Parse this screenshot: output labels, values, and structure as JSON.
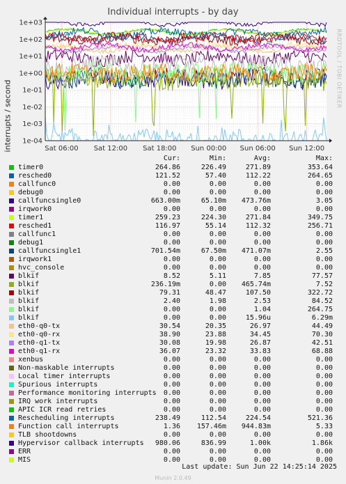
{
  "chart_data": {
    "type": "line",
    "title": "Individual interrupts - by day",
    "ylabel": "interrupts / second",
    "yscale": "log",
    "ylim": [
      "1e-04",
      "1e+03"
    ],
    "y_ticks": [
      "1e+03",
      "1e+02",
      "1e+01",
      "1e+00",
      "1e-01",
      "1e-02",
      "1e-03",
      "1e-04"
    ],
    "y_tick_values": [
      1000,
      100,
      10,
      1,
      0.1,
      0.01,
      0.001,
      0.0001
    ],
    "x_ticks": [
      "Sat 06:00",
      "Sat 12:00",
      "Sat 18:00",
      "Sun 00:00",
      "Sun 06:00",
      "Sun 12:00"
    ],
    "x_range": [
      "Sat 04:00",
      "Sun 14:25"
    ],
    "grid": true,
    "legend_placement": "bottom",
    "legend_columns": [
      "Cur:",
      "Min:",
      "Avg:",
      "Max:"
    ],
    "series": [
      {
        "name": "timer0",
        "color": "#00cc00",
        "cur": "264.86",
        "min": "226.49",
        "avg": "271.89",
        "max": "353.64"
      },
      {
        "name": "resched0",
        "color": "#0066b3",
        "cur": "121.52",
        "min": "57.40",
        "avg": "112.22",
        "max": "264.65"
      },
      {
        "name": "callfunc0",
        "color": "#ff8000",
        "cur": "0.00",
        "min": "0.00",
        "avg": "0.00",
        "max": "0.00"
      },
      {
        "name": "debug0",
        "color": "#ffcc00",
        "cur": "0.00",
        "min": "0.00",
        "avg": "0.00",
        "max": "0.00"
      },
      {
        "name": "callfuncsingle0",
        "color": "#330099",
        "cur": "663.00m",
        "min": "65.10m",
        "avg": "473.76m",
        "max": "3.05"
      },
      {
        "name": "irqwork0",
        "color": "#990099",
        "cur": "0.00",
        "min": "0.00",
        "avg": "0.00",
        "max": "0.00"
      },
      {
        "name": "timer1",
        "color": "#ccff00",
        "cur": "259.23",
        "min": "224.30",
        "avg": "271.84",
        "max": "349.75"
      },
      {
        "name": "resched1",
        "color": "#ff0000",
        "cur": "116.97",
        "min": "55.14",
        "avg": "112.32",
        "max": "256.71"
      },
      {
        "name": "callfunc1",
        "color": "#808080",
        "cur": "0.00",
        "min": "0.00",
        "avg": "0.00",
        "max": "0.00"
      },
      {
        "name": "debug1",
        "color": "#008f00",
        "cur": "0.00",
        "min": "0.00",
        "avg": "0.00",
        "max": "0.00"
      },
      {
        "name": "callfuncsingle1",
        "color": "#00487d",
        "cur": "701.54m",
        "min": "67.50m",
        "avg": "471.07m",
        "max": "2.55"
      },
      {
        "name": "irqwork1",
        "color": "#b35a00",
        "cur": "0.00",
        "min": "0.00",
        "avg": "0.00",
        "max": "0.00"
      },
      {
        "name": "hvc_console",
        "color": "#b38f00",
        "cur": "0.00",
        "min": "0.00",
        "avg": "0.00",
        "max": "0.00"
      },
      {
        "name": "blkif",
        "color": "#6b006b",
        "cur": "8.52",
        "min": "5.11",
        "avg": "7.85",
        "max": "77.57"
      },
      {
        "name": "blkif",
        "color": "#8fb300",
        "cur": "236.19m",
        "min": "0.00",
        "avg": "465.74m",
        "max": "7.52"
      },
      {
        "name": "blkif",
        "color": "#b30000",
        "cur": "79.31",
        "min": "48.47",
        "avg": "107.50",
        "max": "322.72"
      },
      {
        "name": "blkif",
        "color": "#bebebe",
        "cur": "2.40",
        "min": "1.98",
        "avg": "2.53",
        "max": "84.52"
      },
      {
        "name": "blkif",
        "color": "#80ff80",
        "cur": "0.00",
        "min": "0.00",
        "avg": "1.04",
        "max": "264.75"
      },
      {
        "name": "blkif",
        "color": "#80c9ff",
        "cur": "0.00",
        "min": "0.00",
        "avg": "15.96u",
        "max": "6.29m"
      },
      {
        "name": "eth0-q0-tx",
        "color": "#ffc080",
        "cur": "30.54",
        "min": "20.35",
        "avg": "26.97",
        "max": "44.49"
      },
      {
        "name": "eth0-q0-rx",
        "color": "#ffe680",
        "cur": "38.90",
        "min": "23.88",
        "avg": "34.45",
        "max": "70.30"
      },
      {
        "name": "eth0-q1-tx",
        "color": "#aa80ff",
        "cur": "30.08",
        "min": "19.98",
        "avg": "26.87",
        "max": "42.51"
      },
      {
        "name": "eth0-q1-rx",
        "color": "#ee00cc",
        "cur": "36.07",
        "min": "23.32",
        "avg": "33.83",
        "max": "68.88"
      },
      {
        "name": "xenbus",
        "color": "#ff8080",
        "cur": "0.00",
        "min": "0.00",
        "avg": "0.00",
        "max": "0.00"
      },
      {
        "name": "Non-maskable interrupts",
        "color": "#666600",
        "cur": "0.00",
        "min": "0.00",
        "avg": "0.00",
        "max": "0.00"
      },
      {
        "name": "Local timer interrupts",
        "color": "#ffbfff",
        "cur": "0.00",
        "min": "0.00",
        "avg": "0.00",
        "max": "0.00"
      },
      {
        "name": "Spurious interrupts",
        "color": "#00ffcc",
        "cur": "0.00",
        "min": "0.00",
        "avg": "0.00",
        "max": "0.00"
      },
      {
        "name": "Performance monitoring interrupts",
        "color": "#cc6699",
        "cur": "0.00",
        "min": "0.00",
        "avg": "0.00",
        "max": "0.00"
      },
      {
        "name": "IRQ work interrupts",
        "color": "#999900",
        "cur": "0.00",
        "min": "0.00",
        "avg": "0.00",
        "max": "0.00"
      },
      {
        "name": "APIC ICR read retries",
        "color": "#00cc00",
        "cur": "0.00",
        "min": "0.00",
        "avg": "0.00",
        "max": "0.00"
      },
      {
        "name": "Rescheduling interrupts",
        "color": "#0066b3",
        "cur": "238.49",
        "min": "112.54",
        "avg": "224.54",
        "max": "521.36"
      },
      {
        "name": "Function call interrupts",
        "color": "#ff8000",
        "cur": "1.36",
        "min": "157.46m",
        "avg": "944.83m",
        "max": "5.33"
      },
      {
        "name": "TLB shootdowns",
        "color": "#ffcc00",
        "cur": "0.00",
        "min": "0.00",
        "avg": "0.00",
        "max": "0.00"
      },
      {
        "name": "Hypervisor callback interrupts",
        "color": "#330099",
        "cur": "980.06",
        "min": "836.99",
        "avg": "1.00k",
        "max": "1.86k"
      },
      {
        "name": "ERR",
        "color": "#990099",
        "cur": "0.00",
        "min": "0.00",
        "avg": "0.00",
        "max": "0.00"
      },
      {
        "name": "MIS",
        "color": "#ccff00",
        "cur": "0.00",
        "min": "0.00",
        "avg": "0.00",
        "max": "0.00"
      }
    ]
  },
  "watermark": "RRDTOOL / TOBI OETIKER",
  "last_update": "Last update:  Sun Jun 22 14:25:14 2025",
  "munin_version": "Munin 2.0.49"
}
